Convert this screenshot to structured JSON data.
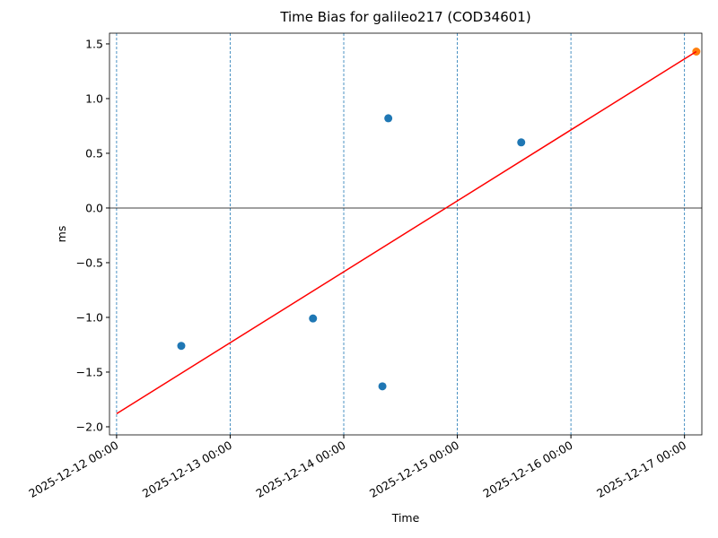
{
  "chart_data": {
    "type": "scatter",
    "title": "Time Bias for galileo217 (COD34601)",
    "xlabel": "Time",
    "ylabel": "ms",
    "xlim": [
      "2025-12-11 22:30",
      "2025-12-17 03:40"
    ],
    "ylim": [
      -2.074,
      1.598
    ],
    "xticks": [
      "2025-12-12 00:00",
      "2025-12-13 00:00",
      "2025-12-14 00:00",
      "2025-12-15 00:00",
      "2025-12-16 00:00",
      "2025-12-17 00:00"
    ],
    "yticks": [
      {
        "value": -2,
        "label": "−2.0"
      },
      {
        "value": -1.5,
        "label": "−1.5"
      },
      {
        "value": -1,
        "label": "−1.0"
      },
      {
        "value": -0.5,
        "label": "−0.5"
      },
      {
        "value": 0,
        "label": "0.0"
      },
      {
        "value": 0.5,
        "label": "0.5"
      },
      {
        "value": 1,
        "label": "1.0"
      },
      {
        "value": 1.5,
        "label": "1.5"
      }
    ],
    "x_grid": true,
    "grid_color": "#1f77b4",
    "hline": 0,
    "series": [
      {
        "type": "scatter",
        "color": "#1f77b4",
        "x": [
          "2025-12-12 13:40",
          "2025-12-13 17:30",
          "2025-12-14 08:10",
          "2025-12-14 09:25",
          "2025-12-15 13:30"
        ],
        "values": [
          -1.26,
          -1.01,
          -1.63,
          0.82,
          0.6
        ]
      },
      {
        "type": "scatter",
        "color": "#ff7f0e",
        "x": [
          "2025-12-17 02:30"
        ],
        "values": [
          1.43
        ]
      },
      {
        "type": "line",
        "color": "#ff0000",
        "x": [
          "2025-12-12 00:00",
          "2025-12-17 02:30"
        ],
        "values": [
          -1.88,
          1.43
        ]
      }
    ]
  }
}
